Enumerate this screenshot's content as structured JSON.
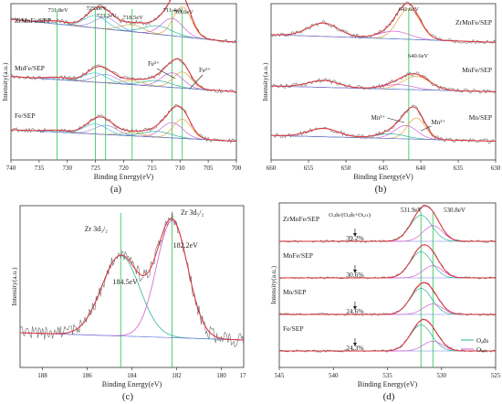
{
  "figure": {
    "panel_labels": [
      "(a)",
      "(b)",
      "(c)",
      "(d)"
    ]
  },
  "colors": {
    "raw": "#6e6e6e",
    "envelope": "#e0303a",
    "baseline": "#6b7fd7",
    "refline": "#27c24c",
    "comp_orange": "#e8a33d",
    "comp_magenta": "#d35fd3",
    "comp_green": "#2fb39c",
    "comp_olive": "#c9b24b",
    "comp_violet": "#9b8fe0",
    "comp_cyan": "#4cc3d9",
    "comp_brown": "#b07a4a"
  },
  "chart_data": [
    {
      "panel": "(a)",
      "type": "line",
      "title": "",
      "xlabel": "Binding Energy(eV)",
      "ylabel": "Intensity(a.u.)",
      "xlim": [
        740,
        700
      ],
      "xticks": [
        740,
        735,
        730,
        725,
        720,
        715,
        710,
        705,
        700
      ],
      "ref_lines": [
        731.8,
        725.0,
        723.2,
        718.5,
        711.4,
        709.6
      ],
      "peak_labels": [
        "731.8eV",
        "725.0eV",
        "723.2eV",
        "718.5eV",
        "711.4eV",
        "709.6eV"
      ],
      "series": [
        {
          "name": "ZrMnFe/SEP",
          "offset": 2.0,
          "background": [
            0.95,
            0.35
          ],
          "peaks": [
            [
              709.6,
              0.78,
              1.6
            ],
            [
              711.4,
              0.45,
              1.9
            ],
            [
              714.0,
              0.22,
              2.5
            ],
            [
              718.5,
              0.18,
              2.0
            ],
            [
              723.2,
              0.3,
              2.0
            ],
            [
              725.0,
              0.32,
              2.0
            ],
            [
              731.8,
              0.08,
              2.0
            ]
          ]
        },
        {
          "name": "MnFe/SEP",
          "offset": 1.0,
          "background": [
            0.7,
            0.3
          ],
          "peaks": [
            [
              709.6,
              0.42,
              1.6
            ],
            [
              711.4,
              0.38,
              1.9
            ],
            [
              714.0,
              0.15,
              2.5
            ],
            [
              718.5,
              0.1,
              2.0
            ],
            [
              723.2,
              0.22,
              2.0
            ],
            [
              725.0,
              0.24,
              2.0
            ],
            [
              731.8,
              0.06,
              2.0
            ]
          ]
        },
        {
          "name": "Fe/SEP",
          "offset": 0.0,
          "background": [
            0.55,
            0.25
          ],
          "peaks": [
            [
              709.6,
              0.5,
              1.6
            ],
            [
              711.4,
              0.4,
              1.9
            ],
            [
              714.0,
              0.15,
              2.5
            ],
            [
              718.5,
              0.08,
              2.0
            ],
            [
              723.2,
              0.24,
              2.0
            ],
            [
              725.0,
              0.26,
              2.0
            ],
            [
              731.8,
              0.05,
              2.0
            ]
          ]
        }
      ],
      "annotations": [
        "Fe³⁺",
        "Fe²⁺"
      ]
    },
    {
      "panel": "(b)",
      "type": "line",
      "title": "",
      "xlabel": "Binding Energy(eV)",
      "ylabel": "Intensity(a.u.)",
      "xlim": [
        660,
        630
      ],
      "xticks": [
        660,
        655,
        650,
        645,
        640,
        635,
        630
      ],
      "ref_lines": [
        641.6
      ],
      "peak_labels": [
        "641.6eV",
        "640.6eV"
      ],
      "series": [
        {
          "name": "ZrMnFe/SEP",
          "offset": 2.0,
          "background": [
            0.55,
            0.35
          ],
          "peaks": [
            [
              641.6,
              0.8,
              1.5
            ],
            [
              643.5,
              0.2,
              2.0
            ],
            [
              653.0,
              0.35,
              2.0
            ]
          ]
        },
        {
          "name": "MnFe/SEP",
          "offset": 1.0,
          "background": [
            0.45,
            0.3
          ],
          "peaks": [
            [
              640.6,
              0.35,
              1.8
            ],
            [
              643.0,
              0.12,
              2.0
            ],
            [
              653.0,
              0.18,
              2.0
            ]
          ]
        },
        {
          "name": "Mn/SEP",
          "offset": 0.0,
          "background": [
            0.4,
            0.25
          ],
          "peaks": [
            [
              640.6,
              0.55,
              1.2
            ],
            [
              642.0,
              0.35,
              1.5
            ],
            [
              644.0,
              0.12,
              2.0
            ],
            [
              653.0,
              0.22,
              2.0
            ]
          ]
        }
      ],
      "annotations": [
        "Mn³⁺",
        "Mn²⁺"
      ]
    },
    {
      "panel": "(c)",
      "type": "line",
      "title": "",
      "xlabel": "Binding Energy(eV)",
      "ylabel": "Intensity(a.u.)",
      "xlim": [
        189,
        179
      ],
      "xticks": [
        188,
        186,
        184,
        182,
        180
      ],
      "xtick_edge_label": "17",
      "ref_lines": [
        184.5,
        182.2
      ],
      "peak_labels": [
        "184.5eV",
        "182.2eV"
      ],
      "orbital_labels": [
        "Zr 3d₃/₂",
        "Zr 3d₅/₂"
      ],
      "background": [
        0.1,
        0.05
      ],
      "peaks": [
        [
          184.5,
          0.55,
          0.85
        ],
        [
          182.2,
          0.8,
          0.7
        ]
      ]
    },
    {
      "panel": "(d)",
      "type": "line",
      "title": "",
      "xlabel": "Binding Energy(eV)",
      "ylabel": "Intensity(a.u.)",
      "xlim": [
        545,
        525
      ],
      "xticks": [
        545,
        540,
        535,
        530,
        525
      ],
      "ref_lines": [
        531.9,
        530.8
      ],
      "peak_labels": [
        "531.9eV",
        "530.8eV"
      ],
      "ratio_label": "Oₐds/(Oₐds+Oₗₐₜₜ)",
      "legend": [
        "Oₐds",
        "Oₗₐₜₜ"
      ],
      "legend_position": "bottom-right",
      "series": [
        {
          "name": "ZrMnFe/SEP",
          "offset": 3.0,
          "ratio": "39.2%",
          "peaks": [
            [
              531.9,
              0.75,
              1.0
            ],
            [
              530.8,
              0.45,
              0.9
            ]
          ]
        },
        {
          "name": "MnFe/SEP",
          "offset": 2.0,
          "ratio": "30.6%",
          "peaks": [
            [
              531.9,
              0.75,
              1.0
            ],
            [
              530.8,
              0.35,
              0.9
            ]
          ]
        },
        {
          "name": "Mn/SEP",
          "offset": 1.0,
          "ratio": "24.6%",
          "peaks": [
            [
              531.9,
              0.75,
              1.0
            ],
            [
              530.8,
              0.3,
              0.9
            ]
          ]
        },
        {
          "name": "Fe/SEP",
          "offset": 0.0,
          "ratio": "24.3%",
          "peaks": [
            [
              531.9,
              0.75,
              1.0
            ],
            [
              530.8,
              0.28,
              0.9
            ]
          ]
        }
      ]
    }
  ]
}
